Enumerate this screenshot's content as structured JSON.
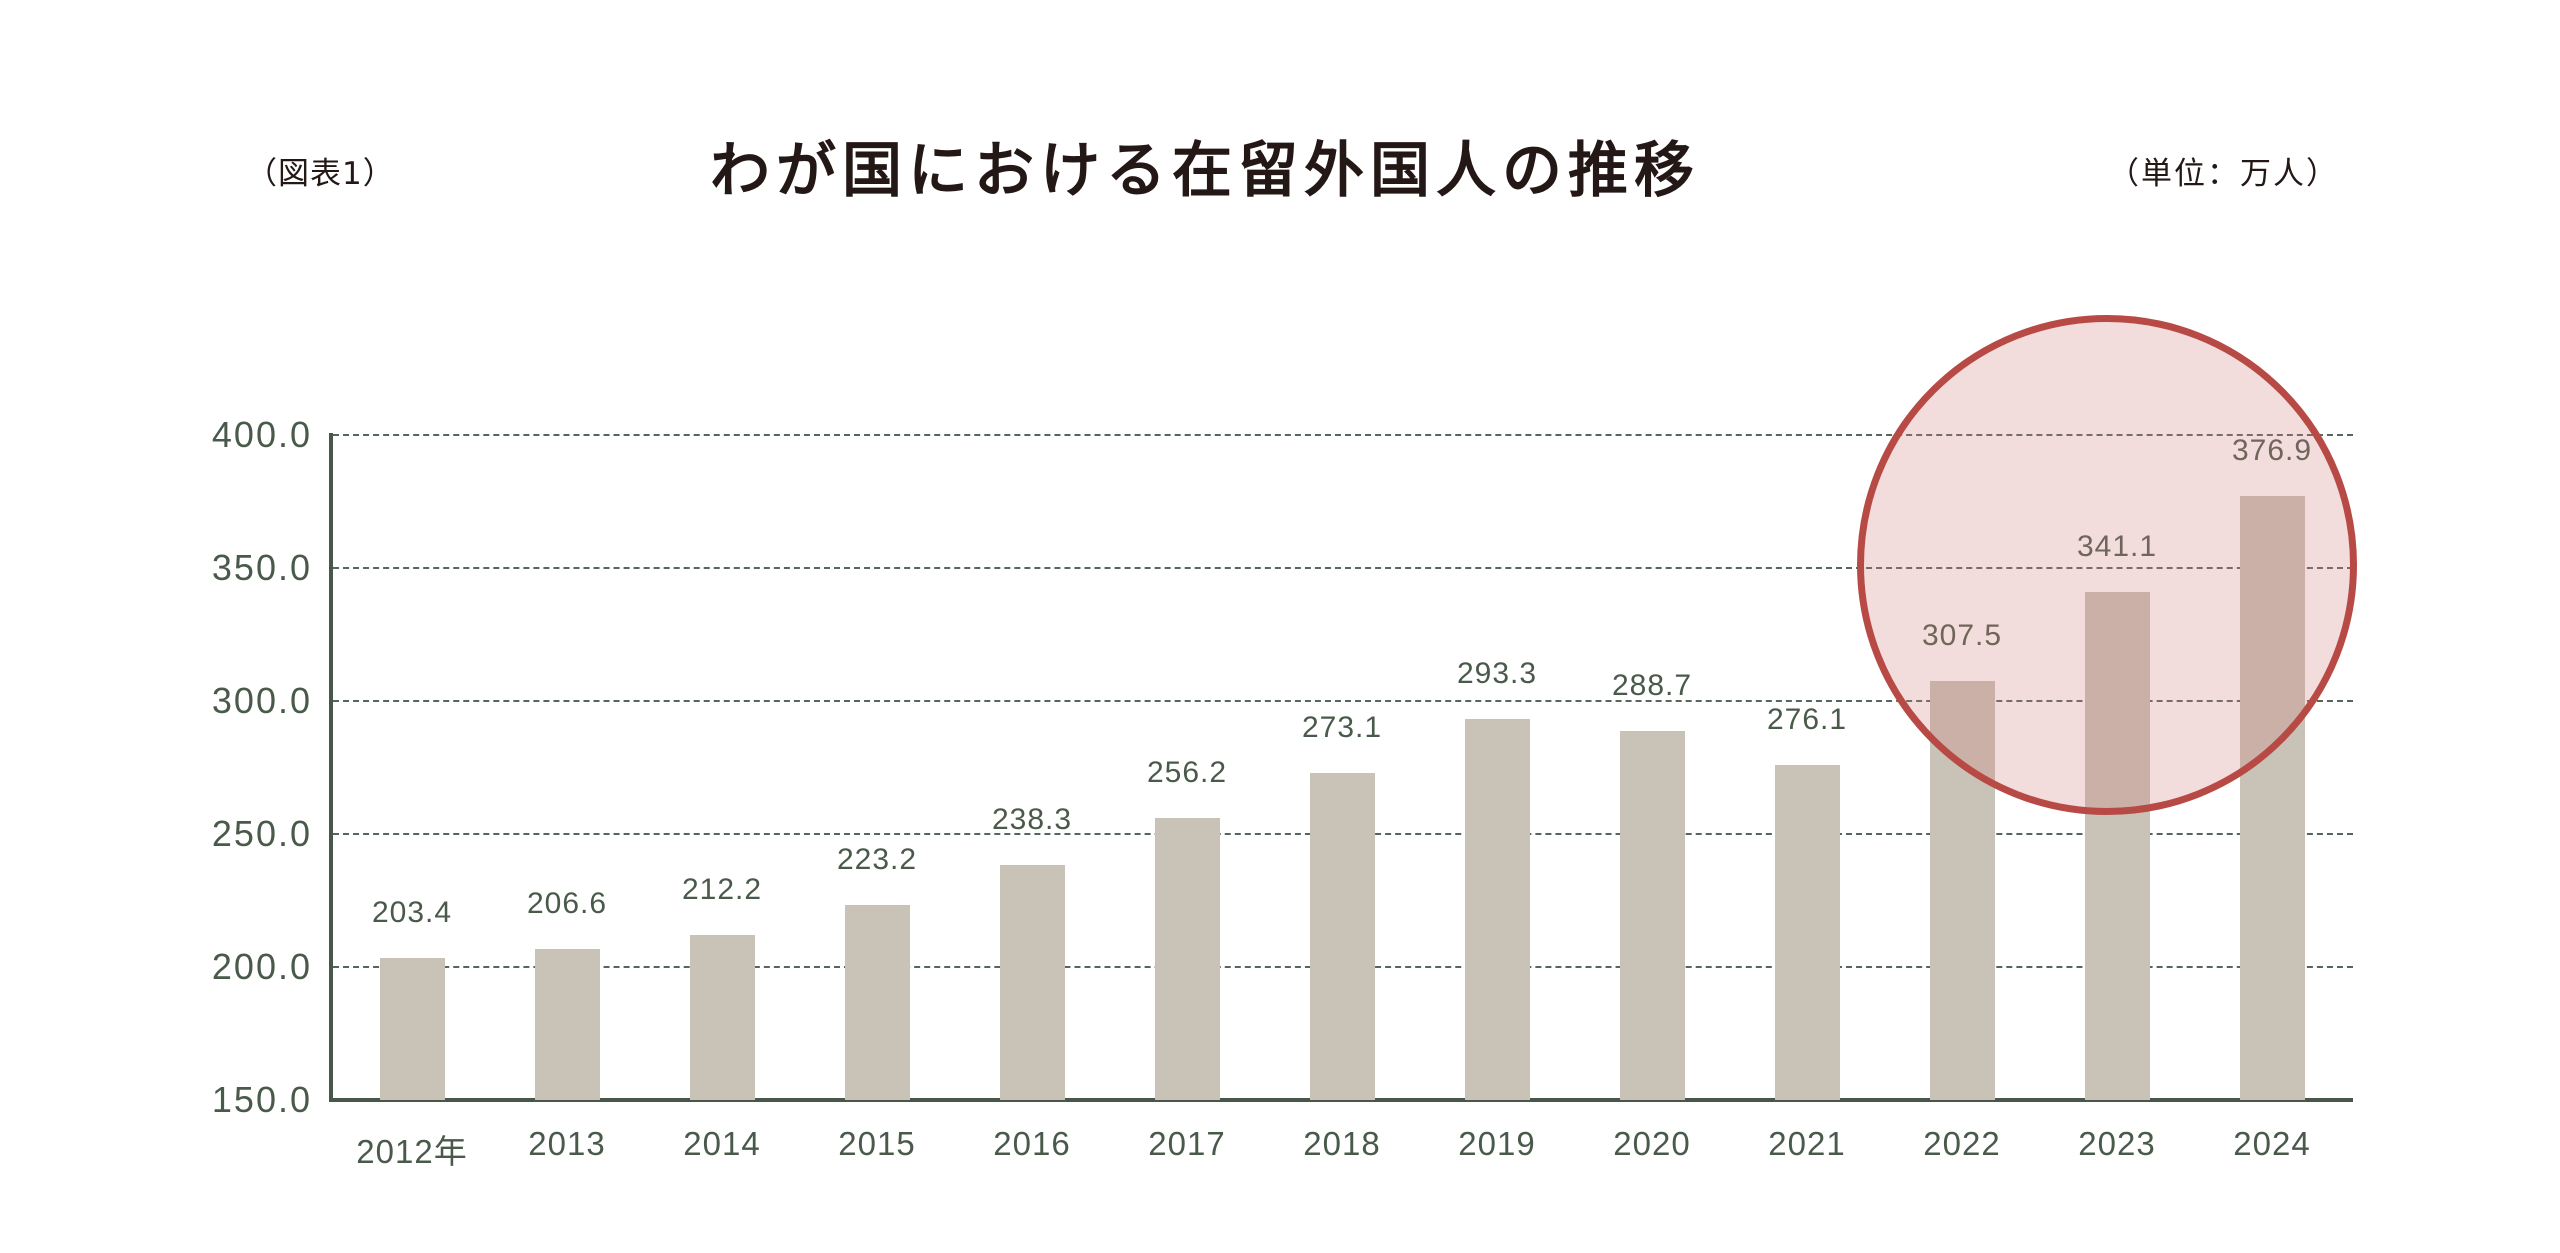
{
  "header": {
    "figure_label": "（図表1）",
    "title": "わが国における在留外国人の推移",
    "unit": "（単位：万人）"
  },
  "chart_data": {
    "type": "bar",
    "title": "わが国における在留外国人の推移",
    "figure_label": "（図表1）",
    "unit": "（単位：万人）",
    "xlabel": "",
    "ylabel": "",
    "categories": [
      "2012年",
      "2013",
      "2014",
      "2015",
      "2016",
      "2017",
      "2018",
      "2019",
      "2020",
      "2021",
      "2022",
      "2023",
      "2024"
    ],
    "values": [
      203.4,
      206.6,
      212.2,
      223.2,
      238.3,
      256.2,
      273.1,
      293.3,
      288.7,
      276.1,
      307.5,
      341.1,
      376.9
    ],
    "value_labels": [
      "203.4",
      "206.6",
      "212.2",
      "223.2",
      "238.3",
      "256.2",
      "273.1",
      "293.3",
      "288.7",
      "276.1",
      "307.5",
      "341.1",
      "376.9"
    ],
    "ylim": [
      150,
      400
    ],
    "yticks": [
      "150.0",
      "200.0",
      "250.0",
      "300.0",
      "350.0",
      "400.0"
    ],
    "grid": "dashed horizontal",
    "legend": "none",
    "highlight": {
      "shape": "circle",
      "categories": [
        "2022",
        "2023",
        "2024"
      ],
      "color": "#b84a46"
    },
    "colors": {
      "bar": "#c9c3b7",
      "axis": "#48574a",
      "text": "#4a5a4a",
      "highlight_border": "#b84a46",
      "highlight_fill": "#ecd6d5"
    }
  }
}
